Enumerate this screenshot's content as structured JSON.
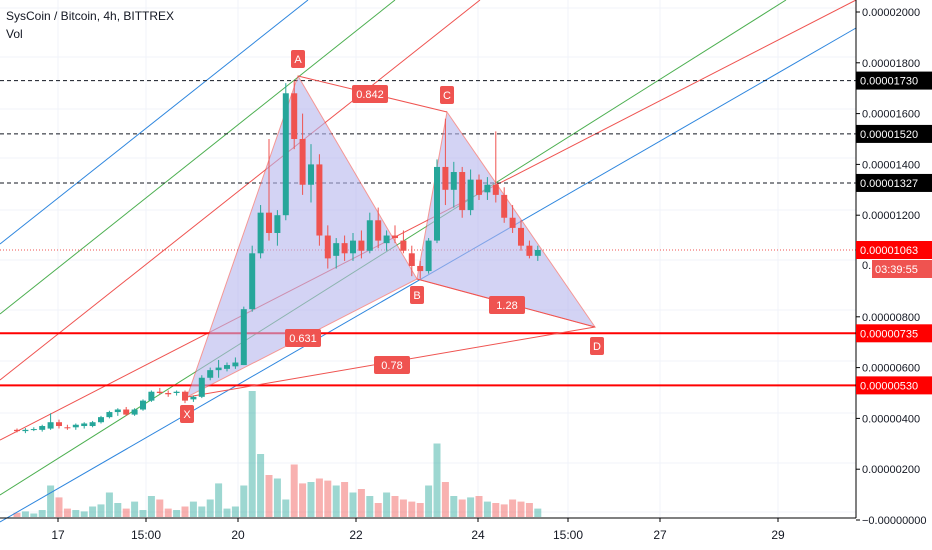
{
  "header": {
    "symbol_line": "SysCoin / Bitcoin, 4h, BITTREX",
    "volume_label": "Vol"
  },
  "colors": {
    "bull": "#26a69a",
    "bear": "#ef5350",
    "pattern_fill": "#b7b7ee",
    "pattern_line": "#ef5350",
    "level_line": "#ff0000",
    "channel_blue": "#2e86de",
    "channel_green": "#4caf50",
    "channel_red": "#ef5350"
  },
  "chart_data": {
    "type": "candlestick",
    "x_tick_labels": [
      "17",
      "15:00",
      "20",
      "22",
      "24",
      "15:00",
      "27",
      "29"
    ],
    "y_tick_labels": [
      "0.00002000",
      "0.00001800",
      "0.00001600",
      "0.00001400",
      "0.00001200",
      "0.00000800",
      "0.00000600",
      "0.00000400",
      "0.00000200",
      "−0.00000000"
    ],
    "ylim": [
      -1e-07,
      2.02e-05
    ],
    "price_labels": [
      {
        "value": 1.73e-05,
        "text": "0.00001730",
        "style": "black"
      },
      {
        "value": 1.52e-05,
        "text": "0.00001520",
        "style": "black"
      },
      {
        "value": 1.327e-05,
        "text": "0.00001327",
        "style": "black"
      },
      {
        "value": 1.063e-05,
        "text": "0.00001063",
        "style": "red"
      },
      {
        "value": 7.35e-06,
        "text": "0.00000735",
        "style": "red"
      },
      {
        "value": 5.3e-06,
        "text": "0.00000530",
        "style": "red"
      }
    ],
    "countdown": "03:39:55",
    "pattern_points": [
      {
        "name": "X",
        "value": 4.8e-06
      },
      {
        "name": "A",
        "value": 1.73e-05
      },
      {
        "name": "B",
        "value": 9.3e-06
      },
      {
        "name": "C",
        "value": 1.58e-05
      },
      {
        "name": "D",
        "value": 7.4e-06
      }
    ],
    "pattern_ratios": [
      "0.631",
      "0.842",
      "1.28",
      "0.78"
    ],
    "candles": [
      {
        "o": 3.55,
        "h": 3.6,
        "l": 3.45,
        "c": 3.5
      },
      {
        "o": 3.5,
        "h": 3.62,
        "l": 3.42,
        "c": 3.55
      },
      {
        "o": 3.55,
        "h": 3.65,
        "l": 3.5,
        "c": 3.58
      },
      {
        "o": 3.55,
        "h": 3.75,
        "l": 3.48,
        "c": 3.7
      },
      {
        "o": 3.6,
        "h": 4.2,
        "l": 3.55,
        "c": 3.85
      },
      {
        "o": 3.85,
        "h": 3.95,
        "l": 3.6,
        "c": 3.7
      },
      {
        "o": 3.65,
        "h": 3.75,
        "l": 3.55,
        "c": 3.62
      },
      {
        "o": 3.65,
        "h": 3.8,
        "l": 3.55,
        "c": 3.75
      },
      {
        "o": 3.7,
        "h": 3.85,
        "l": 3.6,
        "c": 3.8
      },
      {
        "o": 3.7,
        "h": 3.9,
        "l": 3.65,
        "c": 3.85
      },
      {
        "o": 3.85,
        "h": 4.1,
        "l": 3.8,
        "c": 4.05
      },
      {
        "o": 4.05,
        "h": 4.3,
        "l": 4.0,
        "c": 4.25
      },
      {
        "o": 4.25,
        "h": 4.4,
        "l": 4.1,
        "c": 4.35
      },
      {
        "o": 4.35,
        "h": 4.45,
        "l": 4.1,
        "c": 4.15
      },
      {
        "o": 4.15,
        "h": 4.4,
        "l": 4.1,
        "c": 4.35
      },
      {
        "o": 4.35,
        "h": 4.75,
        "l": 4.3,
        "c": 4.7
      },
      {
        "o": 4.7,
        "h": 5.1,
        "l": 4.65,
        "c": 5.05
      },
      {
        "o": 5.05,
        "h": 5.2,
        "l": 4.95,
        "c": 5.0
      },
      {
        "o": 5.0,
        "h": 5.1,
        "l": 4.85,
        "c": 4.95
      },
      {
        "o": 5.0,
        "h": 5.1,
        "l": 4.9,
        "c": 5.05
      },
      {
        "o": 5.05,
        "h": 5.1,
        "l": 4.6,
        "c": 4.7
      },
      {
        "o": 4.75,
        "h": 4.9,
        "l": 4.65,
        "c": 4.85
      },
      {
        "o": 4.85,
        "h": 5.7,
        "l": 4.8,
        "c": 5.6
      },
      {
        "o": 5.6,
        "h": 6.0,
        "l": 5.5,
        "c": 5.9
      },
      {
        "o": 5.9,
        "h": 6.3,
        "l": 5.6,
        "c": 6.0
      },
      {
        "o": 5.95,
        "h": 6.2,
        "l": 5.85,
        "c": 6.1
      },
      {
        "o": 6.05,
        "h": 6.4,
        "l": 5.95,
        "c": 6.2
      },
      {
        "o": 6.1,
        "h": 8.4,
        "l": 6.1,
        "c": 8.3
      },
      {
        "o": 8.3,
        "h": 10.8,
        "l": 8.2,
        "c": 10.5
      },
      {
        "o": 10.5,
        "h": 12.4,
        "l": 10.3,
        "c": 12.1
      },
      {
        "o": 12.1,
        "h": 15.0,
        "l": 11.0,
        "c": 11.3
      },
      {
        "o": 11.3,
        "h": 12.2,
        "l": 10.8,
        "c": 12.0
      },
      {
        "o": 12.0,
        "h": 17.2,
        "l": 11.8,
        "c": 16.8
      },
      {
        "o": 16.8,
        "h": 17.3,
        "l": 14.6,
        "c": 15.0
      },
      {
        "o": 15.0,
        "h": 16.0,
        "l": 12.8,
        "c": 13.2
      },
      {
        "o": 13.2,
        "h": 14.8,
        "l": 12.5,
        "c": 14.0
      },
      {
        "o": 14.0,
        "h": 14.4,
        "l": 10.8,
        "c": 11.2
      },
      {
        "o": 11.2,
        "h": 11.6,
        "l": 9.9,
        "c": 10.3
      },
      {
        "o": 10.4,
        "h": 11.1,
        "l": 9.9,
        "c": 10.9
      },
      {
        "o": 10.9,
        "h": 11.2,
        "l": 10.2,
        "c": 10.5
      },
      {
        "o": 10.5,
        "h": 11.3,
        "l": 10.2,
        "c": 11.0
      },
      {
        "o": 11.0,
        "h": 11.4,
        "l": 10.3,
        "c": 10.6
      },
      {
        "o": 10.6,
        "h": 12.1,
        "l": 10.5,
        "c": 11.8
      },
      {
        "o": 11.8,
        "h": 12.3,
        "l": 10.7,
        "c": 11.0
      },
      {
        "o": 10.9,
        "h": 11.4,
        "l": 10.6,
        "c": 11.2
      },
      {
        "o": 11.2,
        "h": 11.6,
        "l": 10.9,
        "c": 11.1
      },
      {
        "o": 11.0,
        "h": 11.4,
        "l": 10.5,
        "c": 10.6
      },
      {
        "o": 10.5,
        "h": 10.8,
        "l": 9.6,
        "c": 10.0
      },
      {
        "o": 10.0,
        "h": 10.2,
        "l": 9.5,
        "c": 9.8
      },
      {
        "o": 9.8,
        "h": 11.1,
        "l": 9.7,
        "c": 11.0
      },
      {
        "o": 11.0,
        "h": 14.2,
        "l": 10.9,
        "c": 13.9
      },
      {
        "o": 13.9,
        "h": 15.8,
        "l": 12.4,
        "c": 13.0
      },
      {
        "o": 13.0,
        "h": 14.1,
        "l": 12.3,
        "c": 13.7
      },
      {
        "o": 13.7,
        "h": 13.9,
        "l": 11.9,
        "c": 12.2
      },
      {
        "o": 12.2,
        "h": 13.8,
        "l": 12.0,
        "c": 13.4
      },
      {
        "o": 13.4,
        "h": 13.6,
        "l": 12.6,
        "c": 12.8
      },
      {
        "o": 12.9,
        "h": 13.5,
        "l": 12.6,
        "c": 13.2
      },
      {
        "o": 13.2,
        "h": 15.3,
        "l": 12.5,
        "c": 12.8
      },
      {
        "o": 12.8,
        "h": 13.1,
        "l": 11.7,
        "c": 11.9
      },
      {
        "o": 11.9,
        "h": 12.4,
        "l": 11.3,
        "c": 11.5
      },
      {
        "o": 11.5,
        "h": 11.8,
        "l": 10.6,
        "c": 10.8
      },
      {
        "o": 10.8,
        "h": 11.0,
        "l": 10.3,
        "c": 10.4
      },
      {
        "o": 10.4,
        "h": 10.8,
        "l": 10.2,
        "c": 10.63
      }
    ],
    "volumes": [
      0.06,
      0.08,
      0.05,
      0.1,
      0.45,
      0.28,
      0.12,
      0.1,
      0.08,
      0.15,
      0.18,
      0.35,
      0.2,
      0.12,
      0.22,
      0.1,
      0.3,
      0.25,
      0.12,
      0.1,
      0.15,
      0.22,
      0.15,
      0.25,
      0.48,
      0.12,
      0.15,
      0.45,
      1.8,
      0.9,
      0.6,
      0.55,
      0.25,
      0.75,
      0.48,
      0.5,
      0.55,
      0.52,
      0.45,
      0.5,
      0.35,
      0.4,
      0.3,
      0.2,
      0.35,
      0.3,
      0.25,
      0.22,
      0.2,
      0.45,
      1.05,
      0.5,
      0.3,
      0.25,
      0.28,
      0.3,
      0.22,
      0.2,
      0.18,
      0.25,
      0.22,
      0.2,
      0.12
    ]
  }
}
